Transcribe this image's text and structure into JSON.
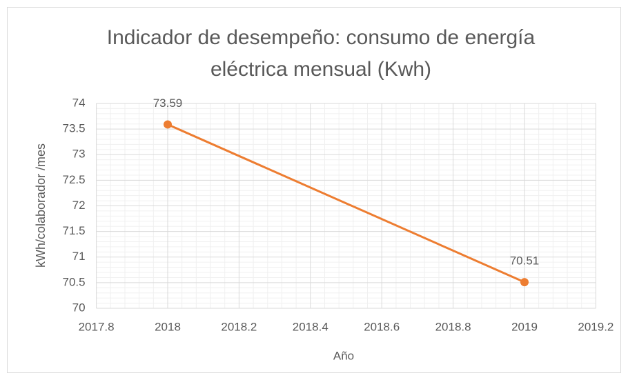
{
  "chart_data": {
    "type": "scatter_line",
    "title": "Indicador de desempeño: consumo de energía eléctrica mensual (Kwh)",
    "x_label": "Año",
    "y_label": "kWh/colaborador /mes",
    "series": [
      {
        "name": "kWh/colaborador /mes",
        "color": "#ed7d31",
        "x": [
          2018,
          2019
        ],
        "values": [
          73.59,
          70.51
        ]
      }
    ],
    "xlim": [
      2017.8,
      2019.2
    ],
    "xticks": [
      2017.8,
      2018,
      2018.2,
      2018.4,
      2018.6,
      2018.8,
      2019,
      2019.2
    ],
    "ylim": [
      70,
      74
    ],
    "yticks": [
      70,
      70.5,
      71,
      71.5,
      72,
      72.5,
      73,
      73.5,
      74
    ],
    "grid": true,
    "minor_grid": true,
    "data_labels": true
  }
}
